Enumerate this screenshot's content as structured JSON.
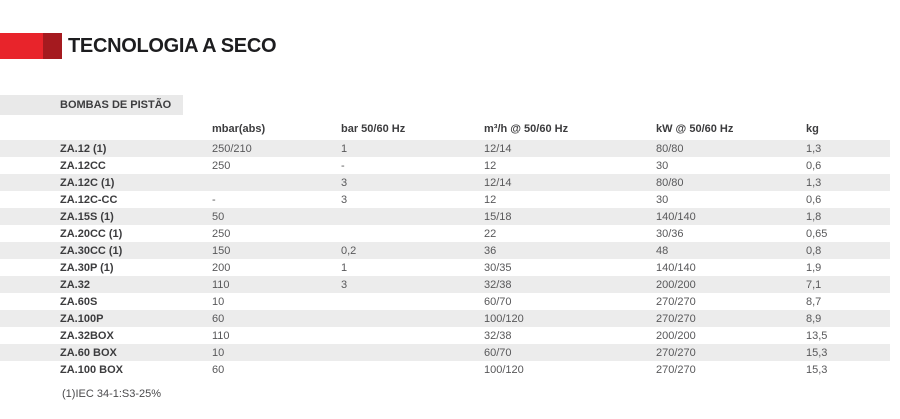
{
  "header": {
    "title": "TECNOLOGIA A SECO"
  },
  "section": {
    "title": "BOMBAS DE PISTÃO"
  },
  "colors": {
    "accent_red": "#e8242b",
    "accent_dark_red": "#a51a1f",
    "section_bar_bg": "#e9e9e9",
    "row_stripe": "#ececec",
    "title_text": "#1d1d1f",
    "value_text": "#58585a"
  },
  "table": {
    "columns": [
      "",
      "mbar(abs)",
      "bar 50/60 Hz",
      "m³/h @ 50/60 Hz",
      "kW @ 50/60 Hz",
      "kg"
    ],
    "cell_keys": [
      "model",
      "mbar_abs",
      "bar",
      "m3h",
      "kw",
      "kg"
    ],
    "rows": [
      {
        "model": "ZA.12 (1)",
        "mbar_abs": "250/210",
        "bar": "1",
        "m3h": "12/14",
        "kw": "80/80",
        "kg": "1,3"
      },
      {
        "model": "ZA.12CC",
        "mbar_abs": "250",
        "bar": "-",
        "m3h": "12",
        "kw": "30",
        "kg": "0,6"
      },
      {
        "model": "ZA.12C (1)",
        "mbar_abs": "",
        "bar": "3",
        "m3h": "12/14",
        "kw": "80/80",
        "kg": "1,3"
      },
      {
        "model": "ZA.12C-CC",
        "mbar_abs": "-",
        "bar": "3",
        "m3h": "12",
        "kw": "30",
        "kg": "0,6"
      },
      {
        "model": "ZA.15S (1)",
        "mbar_abs": "50",
        "bar": "",
        "m3h": "15/18",
        "kw": "140/140",
        "kg": "1,8"
      },
      {
        "model": "ZA.20CC (1)",
        "mbar_abs": "250",
        "bar": "",
        "m3h": "22",
        "kw": "30/36",
        "kg": "0,65"
      },
      {
        "model": "ZA.30CC (1)",
        "mbar_abs": "150",
        "bar": "0,2",
        "m3h": "36",
        "kw": "48",
        "kg": "0,8"
      },
      {
        "model": "ZA.30P (1)",
        "mbar_abs": "200",
        "bar": "1",
        "m3h": "30/35",
        "kw": "140/140",
        "kg": "1,9"
      },
      {
        "model": "ZA.32",
        "mbar_abs": "110",
        "bar": "3",
        "m3h": "32/38",
        "kw": "200/200",
        "kg": "7,1"
      },
      {
        "model": "ZA.60S",
        "mbar_abs": "10",
        "bar": "",
        "m3h": "60/70",
        "kw": "270/270",
        "kg": "8,7"
      },
      {
        "model": "ZA.100P",
        "mbar_abs": "60",
        "bar": "",
        "m3h": "100/120",
        "kw": "270/270",
        "kg": "8,9"
      },
      {
        "model": "ZA.32BOX",
        "mbar_abs": "110",
        "bar": "",
        "m3h": "32/38",
        "kw": "200/200",
        "kg": "13,5"
      },
      {
        "model": "ZA.60 BOX",
        "mbar_abs": "10",
        "bar": "",
        "m3h": "60/70",
        "kw": "270/270",
        "kg": "15,3"
      },
      {
        "model": "ZA.100 BOX",
        "mbar_abs": "60",
        "bar": "",
        "m3h": "100/120",
        "kw": "270/270",
        "kg": "15,3"
      }
    ]
  },
  "footnote": "(1)IEC 34-1:S3-25%"
}
